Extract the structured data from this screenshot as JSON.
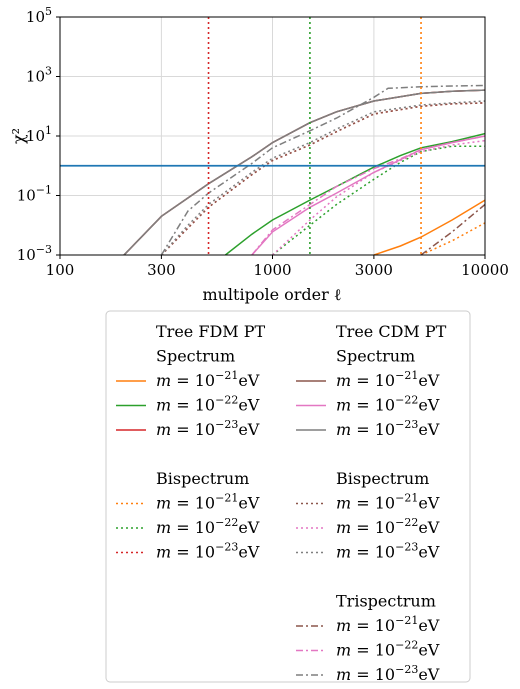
{
  "chart_data": {
    "type": "line",
    "xlabel": "multipole order ℓ",
    "ylabel": "χ²",
    "xscale": "log",
    "yscale": "log",
    "xlim": [
      100,
      10000
    ],
    "ylim": [
      0.001,
      100000
    ],
    "grid": true,
    "x_ticks": [
      {
        "value": 100,
        "label": "100"
      },
      {
        "value": 300,
        "label": "300"
      },
      {
        "value": 1000,
        "label": "1000"
      },
      {
        "value": 3000,
        "label": "3000"
      },
      {
        "value": 10000,
        "label": "10000"
      }
    ],
    "y_ticks": [
      {
        "value": 0.001,
        "base": "10",
        "exp": "−3"
      },
      {
        "value": 0.1,
        "base": "10",
        "exp": "−1"
      },
      {
        "value": 10,
        "base": "10",
        "exp": "1"
      },
      {
        "value": 1000,
        "base": "10",
        "exp": "3"
      },
      {
        "value": 100000,
        "base": "10",
        "exp": "5"
      }
    ],
    "threshold": {
      "y": 1,
      "color": "#1f77b4"
    },
    "vlines": [
      {
        "x": 500,
        "color": "#d62728"
      },
      {
        "x": 1500,
        "color": "#2ca02c"
      },
      {
        "x": 5000,
        "color": "#ff7f0e"
      }
    ],
    "series": [
      {
        "group": "fdm",
        "kind": "spectrum",
        "color": "#ff7f0e",
        "dash": "solid",
        "x": [
          3000,
          4000,
          5000,
          7000,
          10000
        ],
        "y": [
          0.001,
          0.002,
          0.004,
          0.015,
          0.07
        ]
      },
      {
        "group": "fdm",
        "kind": "spectrum",
        "color": "#2ca02c",
        "dash": "solid",
        "x": [
          600,
          800,
          1000,
          1500,
          2000,
          3000,
          4000,
          5000,
          7000,
          10000
        ],
        "y": [
          0.001,
          0.005,
          0.015,
          0.07,
          0.2,
          0.9,
          2.2,
          4,
          6.5,
          12
        ]
      },
      {
        "group": "fdm",
        "kind": "spectrum",
        "color": "#d62728",
        "dash": "solid",
        "x": [
          200,
          300,
          500,
          800,
          1000,
          1500,
          2000,
          3000,
          5000,
          7000,
          10000
        ],
        "y": [
          0.001,
          0.02,
          0.25,
          2,
          6,
          28,
          65,
          150,
          270,
          320,
          350
        ]
      },
      {
        "group": "fdm",
        "kind": "bispectrum",
        "color": "#ff7f0e",
        "dash": "dotted",
        "x": [
          5000,
          7000,
          10000
        ],
        "y": [
          0.001,
          0.003,
          0.012
        ]
      },
      {
        "group": "fdm",
        "kind": "bispectrum",
        "color": "#2ca02c",
        "dash": "dotted",
        "x": [
          1000,
          1500,
          2000,
          3000,
          4000,
          5000,
          7000,
          10000
        ],
        "y": [
          0.001,
          0.01,
          0.05,
          0.35,
          1.3,
          3,
          4.5,
          4.5
        ]
      },
      {
        "group": "fdm",
        "kind": "bispectrum",
        "color": "#d62728",
        "dash": "dotted",
        "x": [
          300,
          400,
          500,
          800,
          1000,
          1500,
          2000,
          3000,
          5000,
          7000,
          10000
        ],
        "y": [
          0.001,
          0.008,
          0.04,
          0.5,
          1.5,
          5,
          14,
          55,
          100,
          120,
          130
        ]
      },
      {
        "group": "cdm",
        "kind": "spectrum",
        "color": "#8c564b",
        "dash": "solid",
        "x": [
          200,
          300,
          500,
          800,
          1000,
          1500,
          2000,
          3000,
          5000,
          7000,
          10000
        ],
        "y": [
          0.001,
          0.02,
          0.25,
          2,
          6,
          28,
          65,
          150,
          270,
          320,
          350
        ]
      },
      {
        "group": "cdm",
        "kind": "spectrum",
        "color": "#e377c2",
        "dash": "solid",
        "x": [
          800,
          1000,
          1500,
          2000,
          3000,
          4000,
          5000,
          7000,
          10000
        ],
        "y": [
          0.001,
          0.006,
          0.04,
          0.12,
          0.6,
          1.6,
          3.5,
          6,
          10
        ]
      },
      {
        "group": "cdm",
        "kind": "spectrum",
        "color": "#7f7f7f",
        "dash": "solid",
        "x": [
          200,
          300,
          500,
          800,
          1000,
          1500,
          2000,
          3000,
          5000,
          7000,
          10000
        ],
        "y": [
          0.001,
          0.02,
          0.25,
          2,
          6,
          28,
          65,
          150,
          270,
          320,
          350
        ]
      },
      {
        "group": "cdm",
        "kind": "bispectrum",
        "color": "#8c564b",
        "dash": "dotted",
        "x": [
          300,
          400,
          500,
          800,
          1000,
          1500,
          2000,
          3000,
          5000,
          7000,
          10000
        ],
        "y": [
          0.001,
          0.008,
          0.04,
          0.5,
          1.5,
          5,
          14,
          55,
          100,
          120,
          130
        ]
      },
      {
        "group": "cdm",
        "kind": "bispectrum",
        "color": "#e377c2",
        "dash": "dotted",
        "x": [
          1000,
          1500,
          2000,
          3000,
          4000,
          5000,
          7000,
          10000
        ],
        "y": [
          0.001,
          0.015,
          0.09,
          0.6,
          1.5,
          3,
          5,
          7
        ]
      },
      {
        "group": "cdm",
        "kind": "bispectrum",
        "color": "#7f7f7f",
        "dash": "dotted",
        "x": [
          300,
          400,
          500,
          800,
          1000,
          1500,
          2000,
          3000,
          5000,
          7000,
          10000
        ],
        "y": [
          0.001,
          0.01,
          0.05,
          0.6,
          1.8,
          6,
          17,
          65,
          110,
          130,
          150
        ]
      },
      {
        "group": "cdm",
        "kind": "trispectrum",
        "color": "#8c564b",
        "dash": "dashdot",
        "x": [
          5000,
          7000,
          10000
        ],
        "y": [
          0.001,
          0.006,
          0.05
        ]
      },
      {
        "group": "cdm",
        "kind": "trispectrum",
        "color": "#e377c2",
        "dash": "dashdot",
        "x": [
          800,
          1000,
          1500,
          2000,
          3000,
          4000,
          5000,
          7000,
          10000
        ],
        "y": [
          0.001,
          0.007,
          0.05,
          0.2,
          0.8,
          1.7,
          3.5,
          6,
          10
        ]
      },
      {
        "group": "cdm",
        "kind": "trispectrum",
        "color": "#7f7f7f",
        "dash": "dashdot",
        "x": [
          300,
          400,
          500,
          800,
          1000,
          1500,
          2000,
          3000,
          3500,
          5000,
          7000,
          10000
        ],
        "y": [
          0.001,
          0.03,
          0.12,
          1.2,
          4,
          15,
          40,
          200,
          400,
          450,
          480,
          500
        ]
      }
    ],
    "legend": {
      "placement": "below",
      "columns": [
        {
          "title": "Tree FDM PT",
          "blocks": [
            {
              "heading": "Spectrum",
              "dash": "solid",
              "entries": [
                {
                  "color": "#ff7f0e",
                  "mass": "m = 10",
                  "exp": "−21",
                  "unit": "eV"
                },
                {
                  "color": "#2ca02c",
                  "mass": "m = 10",
                  "exp": "−22",
                  "unit": "eV"
                },
                {
                  "color": "#d62728",
                  "mass": "m = 10",
                  "exp": "−23",
                  "unit": "eV"
                }
              ]
            },
            {
              "heading": "Bispectrum",
              "dash": "dotted",
              "entries": [
                {
                  "color": "#ff7f0e",
                  "mass": "m = 10",
                  "exp": "−21",
                  "unit": "eV"
                },
                {
                  "color": "#2ca02c",
                  "mass": "m = 10",
                  "exp": "−22",
                  "unit": "eV"
                },
                {
                  "color": "#d62728",
                  "mass": "m = 10",
                  "exp": "−23",
                  "unit": "eV"
                }
              ]
            }
          ]
        },
        {
          "title": "Tree CDM PT",
          "blocks": [
            {
              "heading": "Spectrum",
              "dash": "solid",
              "entries": [
                {
                  "color": "#8c564b",
                  "mass": "m = 10",
                  "exp": "−21",
                  "unit": "eV"
                },
                {
                  "color": "#e377c2",
                  "mass": "m = 10",
                  "exp": "−22",
                  "unit": "eV"
                },
                {
                  "color": "#7f7f7f",
                  "mass": "m = 10",
                  "exp": "−23",
                  "unit": "eV"
                }
              ]
            },
            {
              "heading": "Bispectrum",
              "dash": "dotted",
              "entries": [
                {
                  "color": "#8c564b",
                  "mass": "m = 10",
                  "exp": "−21",
                  "unit": "eV"
                },
                {
                  "color": "#e377c2",
                  "mass": "m = 10",
                  "exp": "−22",
                  "unit": "eV"
                },
                {
                  "color": "#7f7f7f",
                  "mass": "m = 10",
                  "exp": "−23",
                  "unit": "eV"
                }
              ]
            },
            {
              "heading": "Trispectrum",
              "dash": "dashdot",
              "entries": [
                {
                  "color": "#8c564b",
                  "mass": "m = 10",
                  "exp": "−21",
                  "unit": "eV"
                },
                {
                  "color": "#e377c2",
                  "mass": "m = 10",
                  "exp": "−22",
                  "unit": "eV"
                },
                {
                  "color": "#7f7f7f",
                  "mass": "m = 10",
                  "exp": "−23",
                  "unit": "eV"
                }
              ]
            }
          ]
        }
      ]
    }
  }
}
